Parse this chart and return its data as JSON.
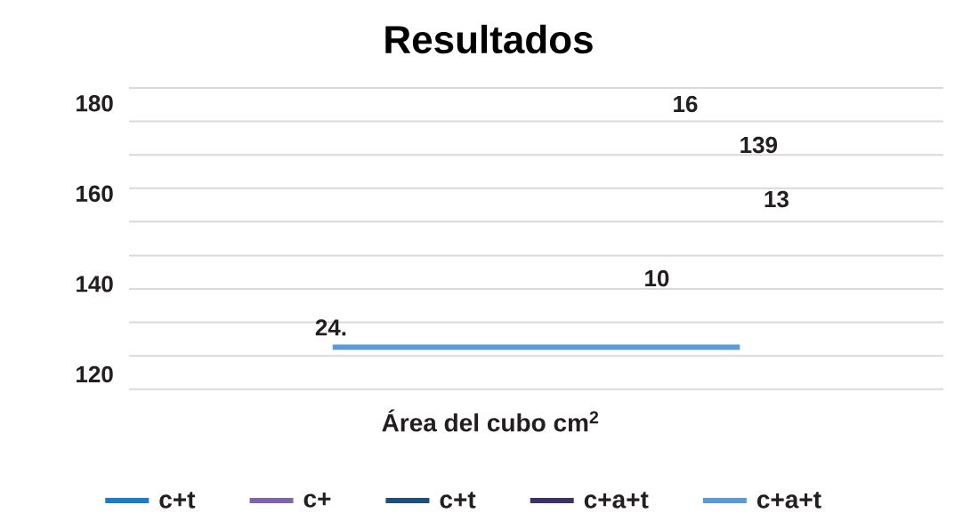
{
  "chart_data": {
    "type": "line",
    "title": "Resultados",
    "xlabel": "Área del cubo cm$^{2}$",
    "categories": [
      null,
      null
    ],
    "series": [
      {
        "name": "c+t",
        "color": "#1b7dc4",
        "values": [
          null,
          null
        ]
      },
      {
        "name": "c+",
        "color": "#8064a8",
        "values": [
          null,
          null
        ]
      },
      {
        "name": "c+t",
        "color": "#1f4e79",
        "values": [
          null,
          null
        ]
      },
      {
        "name": "c+a+t",
        "color": "#3f3263",
        "values": [
          null,
          null
        ]
      },
      {
        "name": "c+a+t",
        "color": "#5b9bd5",
        "values": [
          126,
          126
        ]
      }
    ],
    "ylim": [
      116.7,
      183.4
    ],
    "yticks": [
      {
        "value": 116.7,
        "label": null
      },
      120,
      {
        "value": 124.1,
        "label": null
      },
      {
        "value": 131.5,
        "label": null
      },
      {
        "value": 138.9,
        "label": null
      },
      140,
      {
        "value": 146.3,
        "label": null
      },
      {
        "value": 153.8,
        "label": null
      },
      160,
      {
        "value": 161.2,
        "label": null
      },
      {
        "value": 168.6,
        "label": null
      },
      {
        "value": 176.0,
        "label": null
      },
      180,
      {
        "value": 183.4,
        "label": null
      }
    ],
    "grid": "y",
    "legend": "bottom",
    "annotations": [
      "16",
      "139",
      "13",
      "10",
      "24."
    ]
  }
}
